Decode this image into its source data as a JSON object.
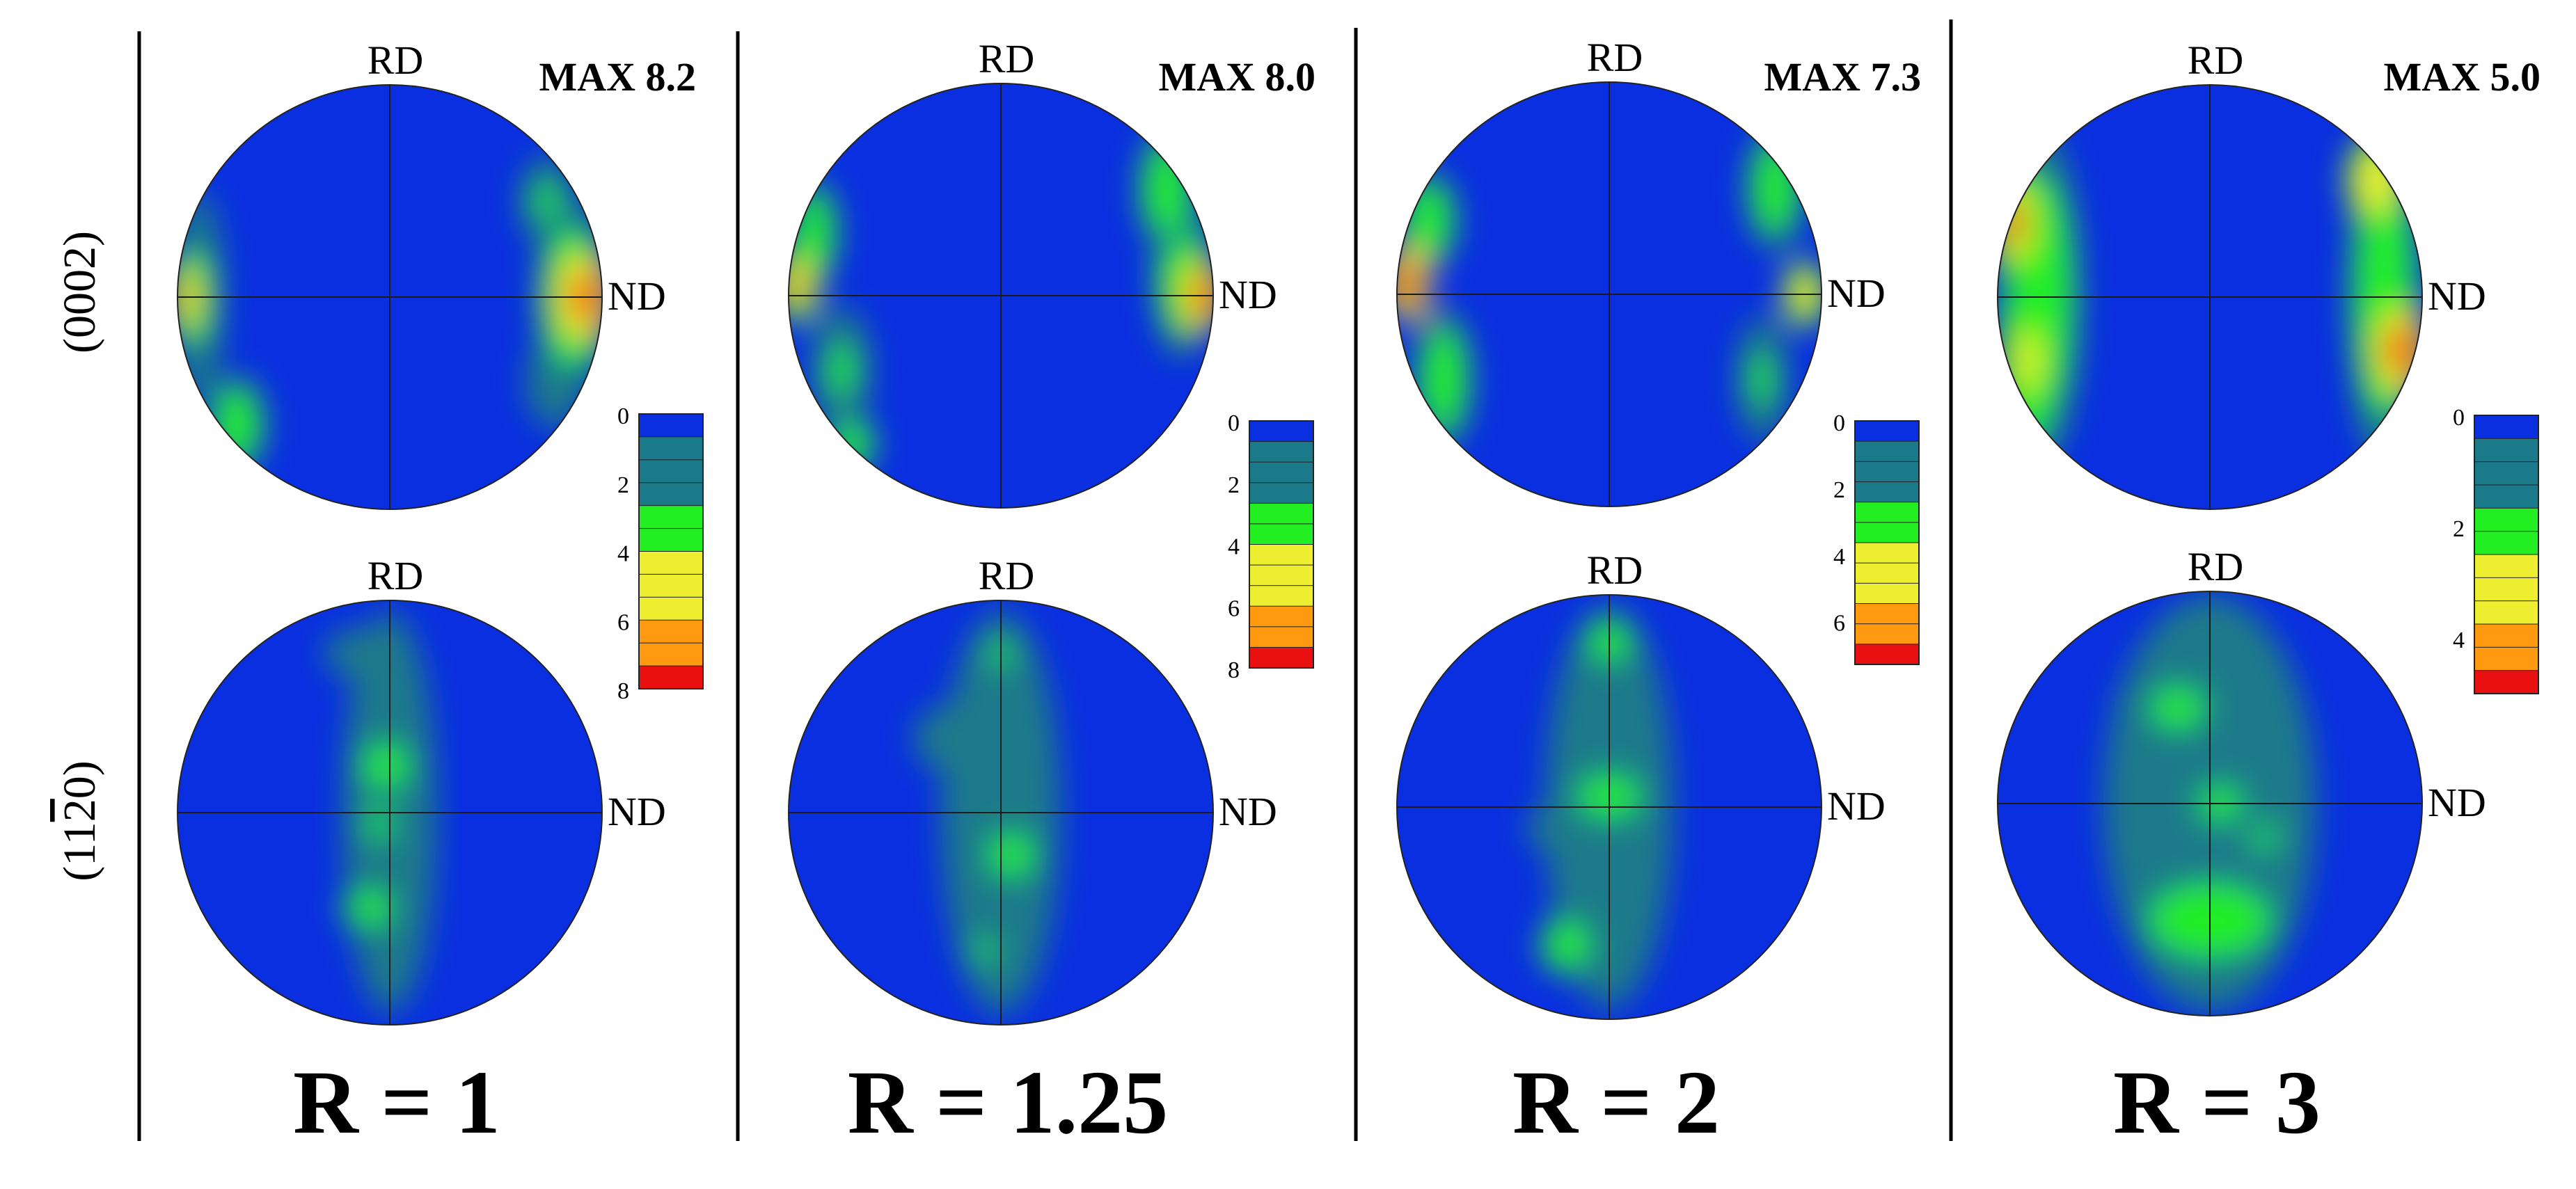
{
  "row_labels": {
    "basal": "(0002)",
    "prism_open": "(11",
    "prism_bar": "2",
    "prism_close": "0)"
  },
  "colors": {
    "blue": "#0a2fe0",
    "teal": "#1a7a8a",
    "green": "#22ee22",
    "yellow": "#eeee30",
    "orange": "#ff9a10",
    "red": "#e81010"
  },
  "panels": [
    {
      "r_label": "R = 1",
      "max_label": "MAX 8.2",
      "rd_top": "RD",
      "nd_top": "ND",
      "rd_bottom": "RD",
      "nd_bottom": "ND",
      "scale": {
        "ticks": [
          "0",
          "2",
          "4",
          "6",
          "8"
        ],
        "max": 8
      },
      "basal_blobs": [
        {
          "u": -0.96,
          "v": 0.0,
          "ru": 0.08,
          "rv": 0.2,
          "level": 0.85
        },
        {
          "u": -0.9,
          "v": 0.0,
          "ru": 0.12,
          "rv": 0.5,
          "level": 0.35
        },
        {
          "u": -0.72,
          "v": -0.6,
          "ru": 0.14,
          "rv": 0.24,
          "level": 0.4
        },
        {
          "u": 0.92,
          "v": 0.0,
          "ru": 0.12,
          "rv": 0.2,
          "level": 1.0
        },
        {
          "u": 0.86,
          "v": 0.0,
          "ru": 0.18,
          "rv": 0.46,
          "level": 0.55
        },
        {
          "u": 0.74,
          "v": 0.45,
          "ru": 0.13,
          "rv": 0.22,
          "level": 0.35
        },
        {
          "u": 0.78,
          "v": -0.4,
          "ru": 0.14,
          "rv": 0.22,
          "level": 0.3
        }
      ],
      "prism_blobs": [
        {
          "u": 0.0,
          "v": 0.0,
          "ru": 0.22,
          "rv": 0.95,
          "level": 0.22
        },
        {
          "u": -0.02,
          "v": 0.22,
          "ru": 0.15,
          "rv": 0.14,
          "level": 0.42
        },
        {
          "u": -0.1,
          "v": -0.45,
          "ru": 0.14,
          "rv": 0.12,
          "level": 0.4
        },
        {
          "u": -0.05,
          "v": -0.05,
          "ru": 0.12,
          "rv": 0.2,
          "level": 0.33
        },
        {
          "u": -0.15,
          "v": 0.75,
          "ru": 0.16,
          "rv": 0.12,
          "level": 0.28
        }
      ]
    },
    {
      "r_label": "R = 1.25",
      "max_label": "MAX 8.0",
      "rd_top": "RD",
      "nd_top": "ND",
      "rd_bottom": "RD",
      "nd_bottom": "ND",
      "scale": {
        "ticks": [
          "0",
          "2",
          "4",
          "6",
          "8"
        ],
        "max": 8
      },
      "basal_blobs": [
        {
          "u": -0.96,
          "v": 0.05,
          "ru": 0.1,
          "rv": 0.18,
          "level": 0.85
        },
        {
          "u": -0.88,
          "v": 0.3,
          "ru": 0.12,
          "rv": 0.26,
          "level": 0.45
        },
        {
          "u": -0.75,
          "v": -0.35,
          "ru": 0.14,
          "rv": 0.3,
          "level": 0.35
        },
        {
          "u": -0.7,
          "v": -0.7,
          "ru": 0.12,
          "rv": 0.14,
          "level": 0.4
        },
        {
          "u": 0.95,
          "v": 0.0,
          "ru": 0.1,
          "rv": 0.16,
          "level": 0.95
        },
        {
          "u": 0.78,
          "v": 0.5,
          "ru": 0.14,
          "rv": 0.3,
          "level": 0.45
        },
        {
          "u": 0.85,
          "v": 0.1,
          "ru": 0.14,
          "rv": 0.4,
          "level": 0.4
        }
      ],
      "prism_blobs": [
        {
          "u": 0.0,
          "v": 0.0,
          "ru": 0.28,
          "rv": 0.95,
          "level": 0.24
        },
        {
          "u": -0.25,
          "v": 0.35,
          "ru": 0.16,
          "rv": 0.16,
          "level": 0.3
        },
        {
          "u": 0.05,
          "v": -0.2,
          "ru": 0.14,
          "rv": 0.14,
          "level": 0.4
        },
        {
          "u": -0.08,
          "v": -0.65,
          "ru": 0.12,
          "rv": 0.12,
          "level": 0.38
        },
        {
          "u": 0.0,
          "v": 0.75,
          "ru": 0.14,
          "rv": 0.12,
          "level": 0.32
        }
      ]
    },
    {
      "r_label": "R = 2",
      "max_label": "MAX 7.3",
      "rd_top": "RD",
      "nd_top": "ND",
      "rd_bottom": "RD",
      "nd_bottom": "ND",
      "scale": {
        "ticks": [
          "0",
          "2",
          "4",
          "6"
        ],
        "max": 7.3
      },
      "basal_blobs": [
        {
          "u": -0.95,
          "v": 0.05,
          "ru": 0.1,
          "rv": 0.18,
          "level": 0.95
        },
        {
          "u": -0.85,
          "v": 0.35,
          "ru": 0.14,
          "rv": 0.24,
          "level": 0.4
        },
        {
          "u": -0.78,
          "v": -0.4,
          "ru": 0.14,
          "rv": 0.34,
          "level": 0.4
        },
        {
          "u": 0.92,
          "v": 0.0,
          "ru": 0.1,
          "rv": 0.16,
          "level": 0.7
        },
        {
          "u": 0.78,
          "v": 0.5,
          "ru": 0.14,
          "rv": 0.3,
          "level": 0.4
        },
        {
          "u": 0.72,
          "v": -0.4,
          "ru": 0.12,
          "rv": 0.3,
          "level": 0.35
        }
      ],
      "prism_blobs": [
        {
          "u": 0.0,
          "v": 0.0,
          "ru": 0.3,
          "rv": 0.95,
          "level": 0.22
        },
        {
          "u": 0.0,
          "v": 0.78,
          "ru": 0.14,
          "rv": 0.12,
          "level": 0.45
        },
        {
          "u": 0.0,
          "v": 0.05,
          "ru": 0.2,
          "rv": 0.14,
          "level": 0.42
        },
        {
          "u": -0.25,
          "v": -0.1,
          "ru": 0.14,
          "rv": 0.12,
          "level": 0.3
        },
        {
          "u": -0.2,
          "v": -0.65,
          "ru": 0.14,
          "rv": 0.16,
          "level": 0.42
        },
        {
          "u": 0.1,
          "v": -0.4,
          "ru": 0.12,
          "rv": 0.12,
          "level": 0.3
        }
      ]
    },
    {
      "r_label": "R = 3",
      "max_label": "MAX 5.0",
      "rd_top": "RD",
      "nd_top": "ND",
      "rd_bottom": "RD",
      "nd_bottom": "ND",
      "scale": {
        "ticks": [
          "0",
          "2",
          "4"
        ],
        "max": 5
      },
      "basal_blobs": [
        {
          "u": -0.92,
          "v": 0.35,
          "ru": 0.12,
          "rv": 0.26,
          "level": 0.9
        },
        {
          "u": -0.86,
          "v": -0.3,
          "ru": 0.14,
          "rv": 0.38,
          "level": 0.65
        },
        {
          "u": -0.8,
          "v": 0.0,
          "ru": 0.2,
          "rv": 0.8,
          "level": 0.4
        },
        {
          "u": 0.78,
          "v": 0.55,
          "ru": 0.14,
          "rv": 0.22,
          "level": 0.7
        },
        {
          "u": 0.9,
          "v": -0.25,
          "ru": 0.12,
          "rv": 0.2,
          "level": 0.95
        },
        {
          "u": 0.82,
          "v": 0.0,
          "ru": 0.18,
          "rv": 0.8,
          "level": 0.45
        }
      ],
      "prism_blobs": [
        {
          "u": 0.0,
          "v": 0.0,
          "ru": 0.5,
          "rv": 0.98,
          "level": 0.26
        },
        {
          "u": -0.15,
          "v": 0.45,
          "ru": 0.3,
          "rv": 0.24,
          "level": 0.38
        },
        {
          "u": 0.05,
          "v": 0.0,
          "ru": 0.24,
          "rv": 0.2,
          "level": 0.36
        },
        {
          "u": 0.0,
          "v": -0.55,
          "ru": 0.4,
          "rv": 0.24,
          "level": 0.4
        },
        {
          "u": 0.25,
          "v": -0.15,
          "ru": 0.14,
          "rv": 0.18,
          "level": 0.34
        }
      ]
    }
  ]
}
